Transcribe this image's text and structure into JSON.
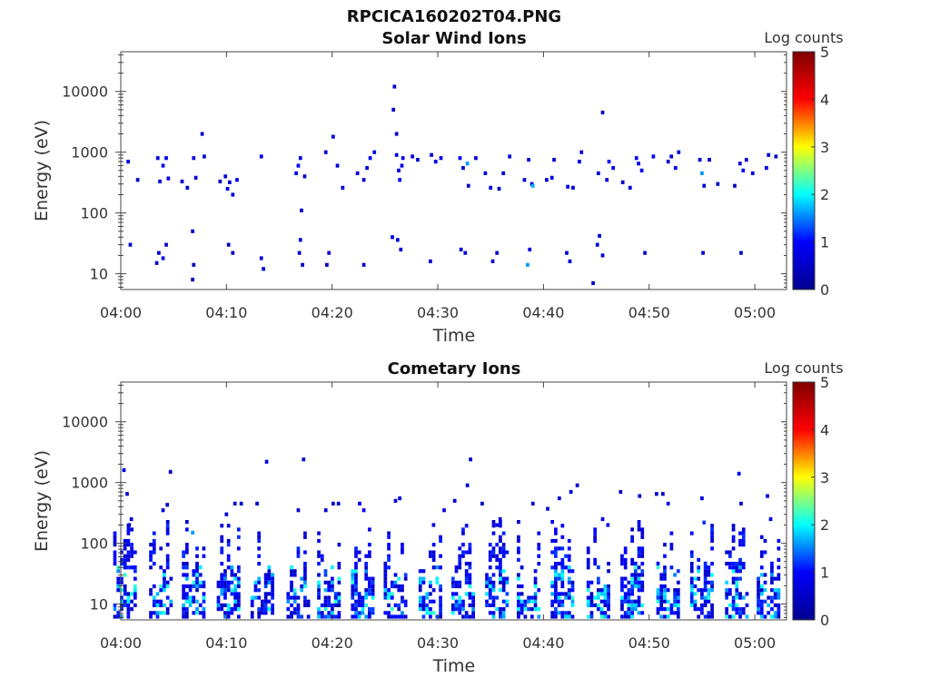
{
  "figure_title": "RPCICA160202T04.PNG",
  "colormap_stops": [
    "#00008f",
    "#0000ff",
    "#00ffff",
    "#ffff00",
    "#ff0000",
    "#800000"
  ],
  "chart_data": [
    {
      "type": "heatmap",
      "title": "Solar Wind Ions",
      "xlabel": "Time",
      "ylabel": "Energy (eV)",
      "y_scale": "log",
      "ylim": [
        5.5,
        45000
      ],
      "xlim_minutes": [
        0,
        63
      ],
      "x_ticks": [
        {
          "label": "04:00",
          "minute": 0
        },
        {
          "label": "04:10",
          "minute": 10
        },
        {
          "label": "04:20",
          "minute": 20
        },
        {
          "label": "04:30",
          "minute": 30
        },
        {
          "label": "04:40",
          "minute": 40
        },
        {
          "label": "04:50",
          "minute": 50
        },
        {
          "label": "05:00",
          "minute": 60
        }
      ],
      "y_ticks": [
        {
          "label": "10",
          "value": 10
        },
        {
          "label": "100",
          "value": 100
        },
        {
          "label": "1000",
          "value": 1000
        },
        {
          "label": "10000",
          "value": 10000
        }
      ],
      "colorbar": {
        "label": "Log counts",
        "min": 0,
        "max": 5,
        "ticks": [
          "0",
          "1",
          "2",
          "3",
          "4",
          "5"
        ]
      },
      "cells": [
        [
          0.9,
          30,
          0.6
        ],
        [
          3.4,
          15,
          0.5
        ],
        [
          3.6,
          22,
          0.6
        ],
        [
          4.0,
          18,
          0.7
        ],
        [
          4.3,
          30,
          0.5
        ],
        [
          6.8,
          8,
          0.4
        ],
        [
          6.8,
          50,
          0.6
        ],
        [
          6.9,
          14,
          0.5
        ],
        [
          10.2,
          30,
          0.4
        ],
        [
          10.6,
          22,
          0.6
        ],
        [
          13.3,
          18,
          0.5
        ],
        [
          13.5,
          12,
          0.6
        ],
        [
          16.9,
          22,
          0.5
        ],
        [
          17.0,
          36,
          0.7
        ],
        [
          17.2,
          14,
          0.6
        ],
        [
          19.5,
          14,
          0.5
        ],
        [
          19.7,
          22,
          0.6
        ],
        [
          23.0,
          14,
          0.6
        ],
        [
          25.7,
          40,
          0.8
        ],
        [
          26.2,
          36,
          0.7
        ],
        [
          26.5,
          25,
          0.6
        ],
        [
          29.3,
          16,
          0.6
        ],
        [
          32.2,
          25,
          0.6
        ],
        [
          32.6,
          22,
          0.7
        ],
        [
          35.2,
          16,
          0.6
        ],
        [
          35.6,
          22,
          0.5
        ],
        [
          38.5,
          14,
          1.6
        ],
        [
          38.7,
          25,
          0.7
        ],
        [
          42.2,
          22,
          0.6
        ],
        [
          42.5,
          16,
          0.6
        ],
        [
          44.7,
          7,
          0.5
        ],
        [
          45.1,
          30,
          0.6
        ],
        [
          45.3,
          42,
          0.6
        ],
        [
          45.6,
          20,
          0.6
        ],
        [
          49.6,
          22,
          0.6
        ],
        [
          55.1,
          22,
          0.6
        ],
        [
          58.7,
          22,
          0.6
        ],
        [
          0.7,
          700,
          0.7
        ],
        [
          1.6,
          350,
          0.6
        ],
        [
          3.5,
          800,
          0.7
        ],
        [
          3.7,
          330,
          0.7
        ],
        [
          4.0,
          600,
          0.8
        ],
        [
          4.3,
          800,
          0.9
        ],
        [
          4.5,
          370,
          0.7
        ],
        [
          5.8,
          330,
          0.6
        ],
        [
          6.3,
          260,
          0.6
        ],
        [
          6.9,
          800,
          0.7
        ],
        [
          7.1,
          380,
          0.6
        ],
        [
          7.7,
          2000,
          0.5
        ],
        [
          7.9,
          850,
          0.6
        ],
        [
          9.4,
          330,
          0.5
        ],
        [
          9.9,
          400,
          0.7
        ],
        [
          10.1,
          250,
          0.8
        ],
        [
          10.3,
          320,
          0.6
        ],
        [
          10.6,
          200,
          0.7
        ],
        [
          11.0,
          350,
          0.8
        ],
        [
          13.3,
          850,
          0.6
        ],
        [
          16.6,
          450,
          0.7
        ],
        [
          16.8,
          600,
          0.9
        ],
        [
          17.0,
          800,
          0.8
        ],
        [
          17.1,
          110,
          0.5
        ],
        [
          17.4,
          400,
          0.6
        ],
        [
          19.4,
          1000,
          0.6
        ],
        [
          20.1,
          1800,
          0.6
        ],
        [
          20.5,
          600,
          0.7
        ],
        [
          21.0,
          260,
          0.6
        ],
        [
          22.4,
          450,
          0.7
        ],
        [
          23.0,
          350,
          0.6
        ],
        [
          23.3,
          550,
          0.8
        ],
        [
          23.6,
          800,
          0.9
        ],
        [
          24.0,
          1000,
          0.7
        ],
        [
          25.9,
          12000,
          0.6
        ],
        [
          26.1,
          900,
          0.8
        ],
        [
          26.3,
          500,
          0.8
        ],
        [
          26.4,
          350,
          0.9
        ],
        [
          26.6,
          600,
          0.8
        ],
        [
          26.7,
          800,
          0.7
        ],
        [
          25.8,
          5000,
          0.5
        ],
        [
          26.1,
          2000,
          0.5
        ],
        [
          27.6,
          850,
          0.7
        ],
        [
          28.1,
          750,
          0.6
        ],
        [
          29.4,
          900,
          0.6
        ],
        [
          29.8,
          700,
          0.8
        ],
        [
          30.3,
          800,
          0.7
        ],
        [
          32.1,
          800,
          0.9
        ],
        [
          32.4,
          550,
          0.8
        ],
        [
          32.8,
          650,
          1.6
        ],
        [
          32.9,
          280,
          0.6
        ],
        [
          33.6,
          800,
          0.6
        ],
        [
          34.5,
          450,
          0.7
        ],
        [
          35.0,
          260,
          0.6
        ],
        [
          35.8,
          250,
          0.6
        ],
        [
          36.2,
          450,
          0.7
        ],
        [
          36.8,
          850,
          0.6
        ],
        [
          38.2,
          350,
          0.8
        ],
        [
          38.6,
          750,
          0.7
        ],
        [
          38.9,
          300,
          0.6
        ],
        [
          39.0,
          280,
          1.7
        ],
        [
          40.3,
          350,
          0.6
        ],
        [
          40.8,
          380,
          0.7
        ],
        [
          41.0,
          750,
          0.6
        ],
        [
          42.3,
          270,
          0.7
        ],
        [
          42.8,
          260,
          0.6
        ],
        [
          43.4,
          700,
          0.8
        ],
        [
          43.6,
          1000,
          0.7
        ],
        [
          45.2,
          450,
          0.7
        ],
        [
          45.6,
          4500,
          0.6
        ],
        [
          46.0,
          350,
          0.7
        ],
        [
          46.2,
          700,
          0.9
        ],
        [
          46.6,
          550,
          0.8
        ],
        [
          47.5,
          320,
          0.6
        ],
        [
          48.2,
          260,
          0.6
        ],
        [
          48.8,
          800,
          0.9
        ],
        [
          49.0,
          650,
          0.9
        ],
        [
          49.3,
          500,
          0.8
        ],
        [
          50.4,
          850,
          0.6
        ],
        [
          51.8,
          700,
          0.6
        ],
        [
          52.1,
          850,
          0.7
        ],
        [
          52.5,
          550,
          0.9
        ],
        [
          52.8,
          1000,
          0.7
        ],
        [
          54.8,
          750,
          0.7
        ],
        [
          55.0,
          450,
          1.6
        ],
        [
          55.2,
          280,
          0.6
        ],
        [
          55.7,
          750,
          0.6
        ],
        [
          56.5,
          300,
          0.6
        ],
        [
          58.1,
          280,
          0.6
        ],
        [
          58.6,
          650,
          0.8
        ],
        [
          58.9,
          500,
          0.9
        ],
        [
          59.2,
          750,
          0.7
        ],
        [
          59.8,
          450,
          0.7
        ],
        [
          61.1,
          550,
          0.8
        ],
        [
          61.3,
          900,
          0.6
        ],
        [
          62.0,
          850,
          0.6
        ]
      ]
    },
    {
      "type": "heatmap",
      "title": "Cometary Ions",
      "xlabel": "Time",
      "ylabel": "Energy (eV)",
      "y_scale": "log",
      "ylim": [
        5.5,
        45000
      ],
      "xlim_minutes": [
        0,
        63
      ],
      "x_ticks": [
        {
          "label": "04:00",
          "minute": 0
        },
        {
          "label": "04:10",
          "minute": 10
        },
        {
          "label": "04:20",
          "minute": 20
        },
        {
          "label": "04:30",
          "minute": 30
        },
        {
          "label": "04:40",
          "minute": 40
        },
        {
          "label": "04:50",
          "minute": 50
        },
        {
          "label": "05:00",
          "minute": 60
        }
      ],
      "y_ticks": [
        {
          "label": "10",
          "value": 10
        },
        {
          "label": "100",
          "value": 100
        },
        {
          "label": "1000",
          "value": 1000
        },
        {
          "label": "10000",
          "value": 10000
        }
      ],
      "colorbar": {
        "label": "Log counts",
        "min": 0,
        "max": 5,
        "ticks": [
          "0",
          "1",
          "2",
          "3",
          "4",
          "5"
        ]
      },
      "bursts": [
        0.4,
        3.8,
        6.9,
        10.2,
        13.4,
        16.8,
        19.7,
        22.9,
        26.0,
        29.3,
        32.4,
        35.6,
        38.6,
        41.8,
        45.2,
        48.4,
        51.8,
        55.0,
        58.3,
        61.3
      ],
      "sparse": [
        [
          0.3,
          1600,
          0.8
        ],
        [
          0.6,
          650,
          0.7
        ],
        [
          0.8,
          200,
          0.6
        ],
        [
          1.0,
          250,
          0.7
        ],
        [
          4.0,
          350,
          0.6
        ],
        [
          4.4,
          430,
          0.7
        ],
        [
          4.7,
          1500,
          0.6
        ],
        [
          6.8,
          150,
          1.6
        ],
        [
          10.0,
          300,
          0.6
        ],
        [
          10.8,
          450,
          0.6
        ],
        [
          11.4,
          450,
          0.6
        ],
        [
          12.9,
          450,
          0.7
        ],
        [
          13.8,
          2200,
          0.6
        ],
        [
          16.8,
          350,
          0.6
        ],
        [
          17.3,
          2400,
          0.6
        ],
        [
          19.4,
          350,
          0.7
        ],
        [
          20.1,
          450,
          0.6
        ],
        [
          20.6,
          450,
          0.6
        ],
        [
          22.6,
          450,
          0.8
        ],
        [
          23.0,
          350,
          0.8
        ],
        [
          26.0,
          500,
          0.6
        ],
        [
          26.4,
          550,
          0.6
        ],
        [
          29.6,
          200,
          0.7
        ],
        [
          30.6,
          350,
          0.6
        ],
        [
          31.6,
          500,
          0.6
        ],
        [
          32.8,
          900,
          0.6
        ],
        [
          33.1,
          2400,
          0.6
        ],
        [
          34.2,
          450,
          0.6
        ],
        [
          35.6,
          200,
          0.8
        ],
        [
          35.9,
          250,
          0.7
        ],
        [
          39.0,
          450,
          0.6
        ],
        [
          40.4,
          370,
          0.6
        ],
        [
          41.5,
          550,
          0.7
        ],
        [
          42.6,
          700,
          0.6
        ],
        [
          43.2,
          900,
          0.6
        ],
        [
          45.6,
          250,
          0.8
        ],
        [
          46.1,
          200,
          0.9
        ],
        [
          47.3,
          700,
          0.6
        ],
        [
          49.1,
          600,
          0.7
        ],
        [
          50.7,
          650,
          0.6
        ],
        [
          51.3,
          650,
          0.6
        ],
        [
          51.8,
          450,
          0.8
        ],
        [
          55.0,
          550,
          0.7
        ],
        [
          55.2,
          220,
          1.2
        ],
        [
          58.5,
          1400,
          0.8
        ],
        [
          58.7,
          450,
          0.6
        ],
        [
          61.2,
          600,
          0.7
        ],
        [
          61.5,
          250,
          0.8
        ]
      ]
    }
  ]
}
